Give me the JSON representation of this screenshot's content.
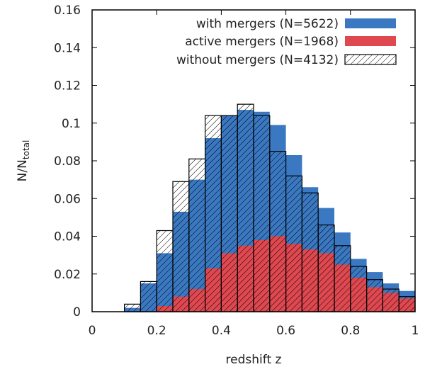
{
  "chart_data": {
    "type": "bar",
    "title": "",
    "xlabel": "redshift z",
    "ylabel": "N/N",
    "ylabel_subscript": "total",
    "xlim": [
      0,
      1
    ],
    "ylim": [
      0,
      0.16
    ],
    "xticks": [
      "0",
      "0.2",
      "0.4",
      "0.6",
      "0.8",
      "1"
    ],
    "yticks": [
      "0",
      "0.02",
      "0.04",
      "0.06",
      "0.08",
      "0.1",
      "0.12",
      "0.14",
      "0.16"
    ],
    "bin_edges": [
      0.1,
      0.15,
      0.2,
      0.25,
      0.3,
      0.35,
      0.4,
      0.45,
      0.5,
      0.55,
      0.6,
      0.65,
      0.7,
      0.75,
      0.8,
      0.85,
      0.9,
      0.95,
      1.0
    ],
    "legend_position": "top-right",
    "series": [
      {
        "name": "with mergers (N=5622)",
        "color": "#3a78c2",
        "style": "filled",
        "values": [
          0.002,
          0.015,
          0.031,
          0.053,
          0.07,
          0.092,
          0.104,
          0.107,
          0.106,
          0.099,
          0.083,
          0.066,
          0.055,
          0.042,
          0.028,
          0.021,
          0.015,
          0.011
        ]
      },
      {
        "name": "active mergers (N=1968)",
        "color": "#e04850",
        "style": "filled",
        "values": [
          0.0,
          0.0,
          0.003,
          0.008,
          0.012,
          0.023,
          0.031,
          0.035,
          0.038,
          0.04,
          0.036,
          0.033,
          0.031,
          0.025,
          0.018,
          0.013,
          0.01,
          0.007
        ]
      },
      {
        "name": "without mergers (N=4132)",
        "color": "#000000",
        "style": "hatched",
        "values": [
          0.004,
          0.016,
          0.043,
          0.069,
          0.081,
          0.104,
          0.104,
          0.11,
          0.104,
          0.085,
          0.072,
          0.063,
          0.046,
          0.035,
          0.024,
          0.017,
          0.012,
          0.008
        ]
      }
    ]
  }
}
